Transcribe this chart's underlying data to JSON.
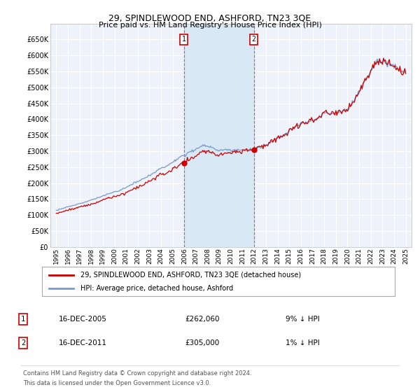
{
  "title": "29, SPINDLEWOOD END, ASHFORD, TN23 3QE",
  "subtitle": "Price paid vs. HM Land Registry's House Price Index (HPI)",
  "legend_line1": "29, SPINDLEWOOD END, ASHFORD, TN23 3QE (detached house)",
  "legend_line2": "HPI: Average price, detached house, Ashford",
  "footnote": "Contains HM Land Registry data © Crown copyright and database right 2024.\nThis data is licensed under the Open Government Licence v3.0.",
  "transaction1_date": "16-DEC-2005",
  "transaction1_price": "£262,060",
  "transaction1_hpi": "9% ↓ HPI",
  "transaction2_date": "16-DEC-2011",
  "transaction2_price": "£305,000",
  "transaction2_hpi": "1% ↓ HPI",
  "transaction1_x": 2005.96,
  "transaction1_y": 262060,
  "transaction2_x": 2011.96,
  "transaction2_y": 305000,
  "ylim": [
    0,
    700000
  ],
  "xlim": [
    1994.5,
    2025.5
  ],
  "background_color": "#ffffff",
  "plot_bg_color": "#eef2fb",
  "grid_color": "#ffffff",
  "hpi_color": "#7799cc",
  "price_color": "#cc0000",
  "marker_color": "#cc0000",
  "vline_color": "#cc3333",
  "shade_color": "#d8e8f5",
  "yticks": [
    0,
    50000,
    100000,
    150000,
    200000,
    250000,
    300000,
    350000,
    400000,
    450000,
    500000,
    550000,
    600000,
    650000
  ],
  "ytick_labels": [
    "£0",
    "£50K",
    "£100K",
    "£150K",
    "£200K",
    "£250K",
    "£300K",
    "£350K",
    "£400K",
    "£450K",
    "£500K",
    "£550K",
    "£600K",
    "£650K"
  ],
  "xticks": [
    1995,
    1996,
    1997,
    1998,
    1999,
    2000,
    2001,
    2002,
    2003,
    2004,
    2005,
    2006,
    2007,
    2008,
    2009,
    2010,
    2011,
    2012,
    2013,
    2014,
    2015,
    2016,
    2017,
    2018,
    2019,
    2020,
    2021,
    2022,
    2023,
    2024,
    2025
  ]
}
